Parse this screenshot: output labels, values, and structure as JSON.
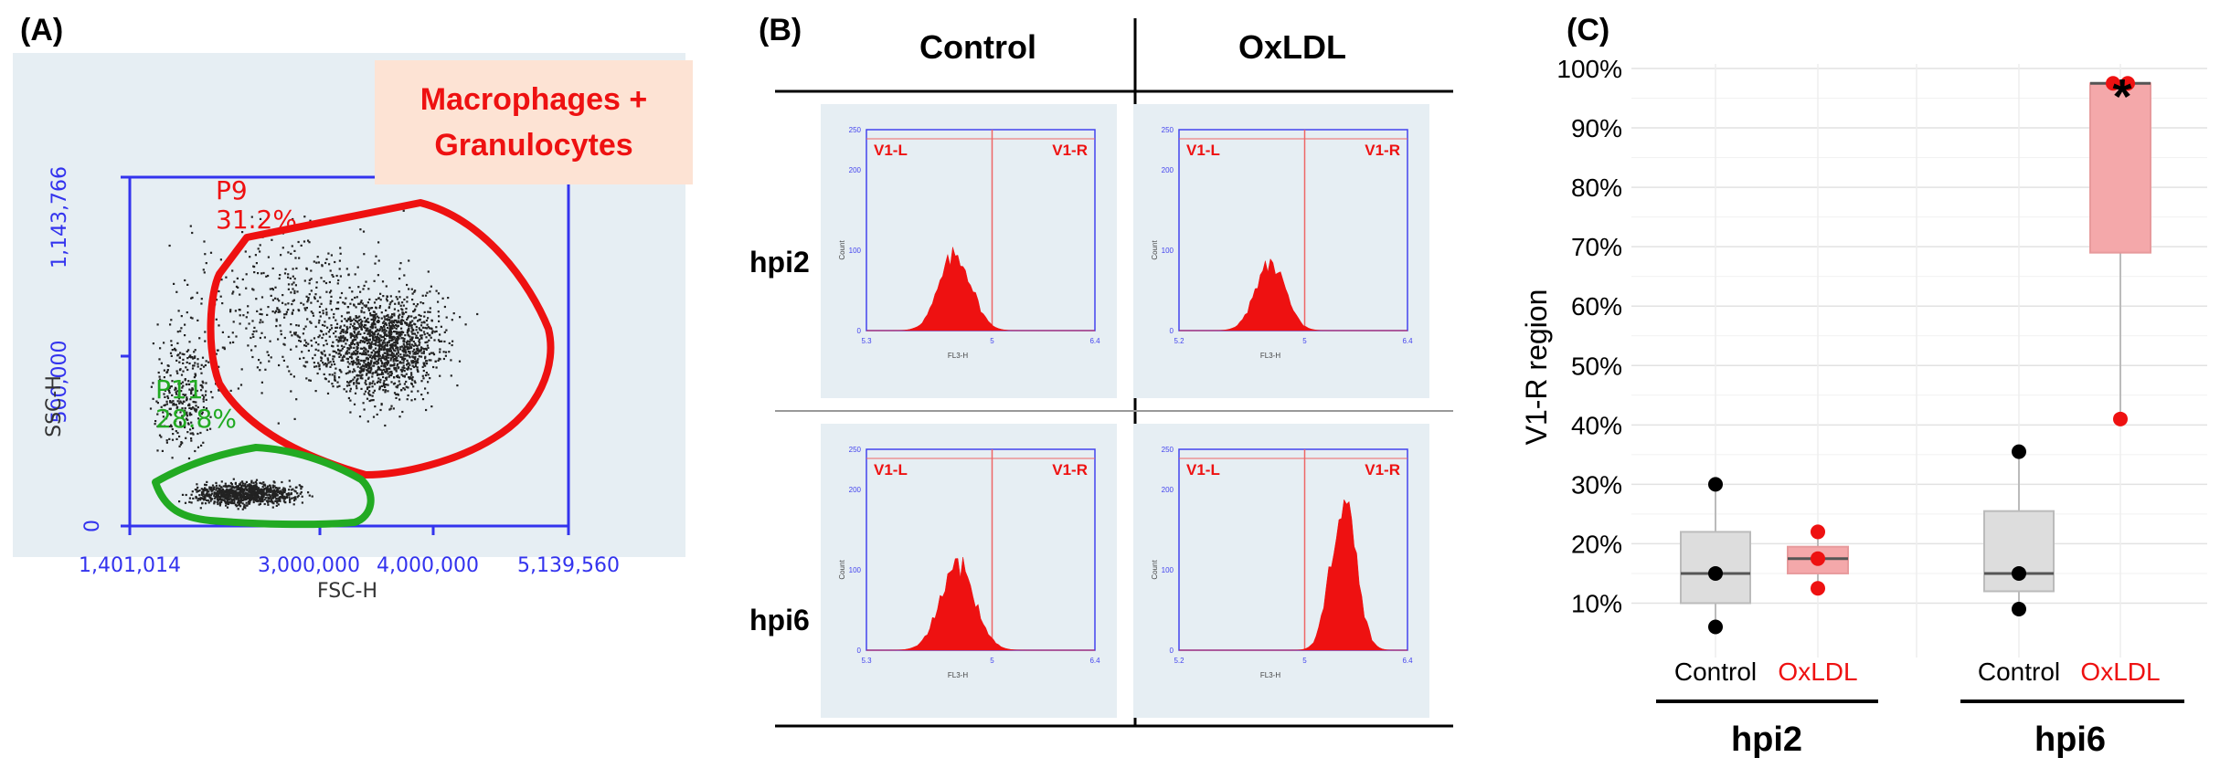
{
  "panels": {
    "a": "(A)",
    "b": "(B)",
    "c": "(C)"
  },
  "colors": {
    "axis_blue": "#3333ee",
    "gate_red": "#ee1111",
    "gate_green": "#22aa22",
    "bg_panel": "#e6eef3",
    "label_box": "#fde3d4",
    "oxldl": "#ee1111",
    "box_control": "#dddddd",
    "box_oxldl": "#f4a8aa"
  },
  "chart_data": [
    {
      "type": "scatter",
      "panel": "A",
      "xlabel": "FSC-H",
      "ylabel": "SSC-H",
      "xlim": [
        1401014,
        5139560
      ],
      "ylim": [
        0,
        1143766
      ],
      "x_ticks": [
        "1,401,014",
        "3,000,000",
        "4,000,000",
        "5,139,560"
      ],
      "y_ticks": [
        "0",
        "500,000",
        "1,143,766"
      ],
      "gates": [
        {
          "name": "P9",
          "percent": "31.2%",
          "color": "red"
        },
        {
          "name": "P11",
          "percent": "28.8%",
          "color": "green"
        }
      ],
      "annotation": "Macrophages + Granulocytes",
      "annotation_lines": [
        "Macrophages +",
        "Granulocytes"
      ]
    },
    {
      "type": "histogram-grid",
      "panel": "B",
      "columns": [
        "Control",
        "OxLDL"
      ],
      "rows": [
        "hpi2",
        "hpi6"
      ],
      "region_labels": [
        "V1-L",
        "V1-R"
      ],
      "xlabel": "FL3-H",
      "ylabel": "Count",
      "y_ticks": [
        "0",
        "100",
        "200",
        "250"
      ],
      "histograms": [
        {
          "row": "hpi2",
          "col": "Control",
          "x_ticks": [
            "5.3",
            "5",
            "6.4"
          ],
          "peak_center": 0.39,
          "peak_height": 0.5,
          "spread": 0.07
        },
        {
          "row": "hpi2",
          "col": "OxLDL",
          "x_ticks": [
            "5.2",
            "5",
            "6.4"
          ],
          "peak_center": 0.4,
          "peak_height": 0.44,
          "spread": 0.065
        },
        {
          "row": "hpi6",
          "col": "Control",
          "x_ticks": [
            "5.3",
            "5",
            "6.4"
          ],
          "peak_center": 0.4,
          "peak_height": 0.57,
          "spread": 0.075
        },
        {
          "row": "hpi6",
          "col": "OxLDL",
          "x_ticks": [
            "5.2",
            "5",
            "6.4"
          ],
          "peak_center": 0.72,
          "peak_height": 1.0,
          "spread": 0.055
        }
      ]
    },
    {
      "type": "box",
      "panel": "C",
      "ylabel": "V1-R region",
      "ylim": [
        5,
        100
      ],
      "y_ticks": [
        "10%",
        "20%",
        "30%",
        "40%",
        "50%",
        "60%",
        "70%",
        "80%",
        "90%",
        "100%"
      ],
      "groups": [
        "hpi2",
        "hpi6"
      ],
      "conditions": [
        "Control",
        "OxLDL"
      ],
      "significance": "*",
      "boxes": [
        {
          "group": "hpi2",
          "condition": "Control",
          "min": 6,
          "q1": 10,
          "median": 15,
          "q3": 22,
          "max": 30,
          "points": [
            6,
            15,
            30
          ]
        },
        {
          "group": "hpi2",
          "condition": "OxLDL",
          "min": 12.5,
          "q1": 15,
          "median": 17.5,
          "q3": 19.5,
          "max": 22,
          "points": [
            12.5,
            17.5,
            22
          ]
        },
        {
          "group": "hpi6",
          "condition": "Control",
          "min": 9,
          "q1": 12,
          "median": 15,
          "q3": 25.5,
          "max": 35.5,
          "points": [
            9,
            15,
            35.5
          ]
        },
        {
          "group": "hpi6",
          "condition": "OxLDL",
          "min": 41,
          "q1": 69,
          "median": 97.5,
          "q3": 97.5,
          "max": 97.5,
          "points": [
            41,
            97.5,
            97.5
          ]
        }
      ]
    }
  ]
}
